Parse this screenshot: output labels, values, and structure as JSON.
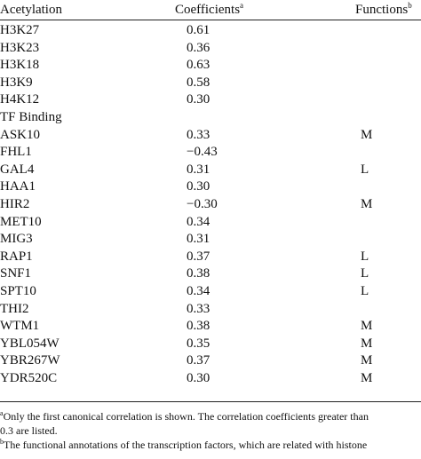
{
  "header": {
    "col1": "Acetylation",
    "col2": "Coefficients",
    "col2_mark": "a",
    "col3": "Functions",
    "col3_mark": "b"
  },
  "rows": [
    {
      "name": "H3K27",
      "coef": "0.61",
      "func": ""
    },
    {
      "name": "H3K23",
      "coef": "0.36",
      "func": ""
    },
    {
      "name": "H3K18",
      "coef": "0.63",
      "func": ""
    },
    {
      "name": "H3K9",
      "coef": "0.58",
      "func": ""
    },
    {
      "name": "H4K12",
      "coef": "0.30",
      "func": ""
    },
    {
      "name": "TF Binding",
      "coef": "",
      "func": ""
    },
    {
      "name": "ASK10",
      "coef": "0.33",
      "func": "M"
    },
    {
      "name": "FHL1",
      "coef": "−0.43",
      "func": ""
    },
    {
      "name": "GAL4",
      "coef": "0.31",
      "func": "L"
    },
    {
      "name": "HAA1",
      "coef": "0.30",
      "func": ""
    },
    {
      "name": "HIR2",
      "coef": "−0.30",
      "func": "M"
    },
    {
      "name": "MET10",
      "coef": "0.34",
      "func": ""
    },
    {
      "name": "MIG3",
      "coef": "0.31",
      "func": ""
    },
    {
      "name": "RAP1",
      "coef": "0.37",
      "func": "L"
    },
    {
      "name": "SNF1",
      "coef": "0.38",
      "func": "L"
    },
    {
      "name": "SPT10",
      "coef": "0.34",
      "func": "L"
    },
    {
      "name": "THI2",
      "coef": "0.33",
      "func": ""
    },
    {
      "name": "WTM1",
      "coef": "0.38",
      "func": "M"
    },
    {
      "name": "YBL054W",
      "coef": "0.35",
      "func": "M"
    },
    {
      "name": "YBR267W",
      "coef": "0.37",
      "func": "M"
    },
    {
      "name": "YDR520C",
      "coef": "0.30",
      "func": "M"
    }
  ],
  "footnotes": {
    "a_mark": "a",
    "a_line1": "Only the first canonical correlation is shown. The correlation coefficients greater than",
    "a_line2": "0.3 are listed.",
    "b_mark": "b",
    "b_line1": "The functional annotations of the transcription factors, which are related with histone"
  }
}
